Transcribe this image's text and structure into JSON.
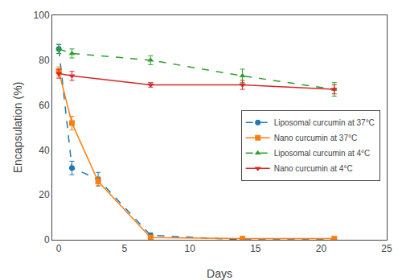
{
  "chart_data": {
    "type": "line",
    "x_label": "Days",
    "y_label": "Encapsulation (%)",
    "series": [
      {
        "name": "Liposomal curcumin at 37°C",
        "x": [
          0,
          1,
          3,
          7,
          14,
          21
        ],
        "values": [
          85,
          32,
          27,
          2,
          0,
          0
        ],
        "yerr": [
          2,
          3,
          3,
          1,
          0,
          0
        ],
        "marker": "circle",
        "line_style": "dashed"
      },
      {
        "name": "Nano curcumin at 37°C",
        "x": [
          0,
          1,
          3,
          7,
          14,
          21
        ],
        "values": [
          75,
          52,
          26,
          1,
          0.5,
          0.5
        ],
        "yerr": [
          2,
          3,
          2,
          0.5,
          0,
          0
        ],
        "marker": "square",
        "line_style": "solid"
      },
      {
        "name": "Liposomal curcumin at 4°C",
        "x": [
          0,
          1,
          7,
          14,
          21
        ],
        "values": [
          85,
          83,
          80,
          73,
          67
        ],
        "yerr": [
          2,
          2,
          2,
          3,
          3
        ],
        "marker": "triangle-up",
        "line_style": "dashed"
      },
      {
        "name": "Nano curcumin at 4°C",
        "x": [
          0,
          1,
          7,
          14,
          21
        ],
        "values": [
          74,
          73,
          69,
          69,
          67
        ],
        "yerr": [
          2,
          2,
          1,
          2,
          2
        ],
        "marker": "triangle-down",
        "line_style": "solid"
      }
    ],
    "xlim": [
      -0.5,
      25
    ],
    "ylim": [
      0,
      100
    ],
    "xticks": [
      0,
      5,
      10,
      15,
      20,
      25
    ],
    "yticks": [
      0,
      20,
      40,
      60,
      80,
      100
    ],
    "grid": false,
    "legend": "right"
  }
}
